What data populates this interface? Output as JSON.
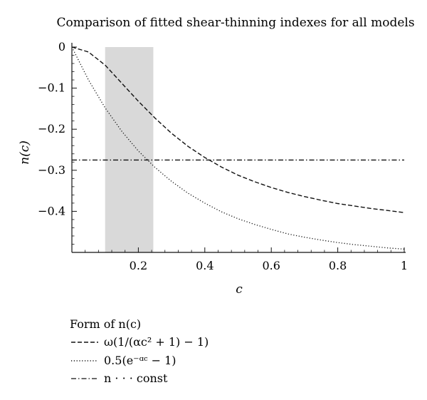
{
  "chart_data": {
    "type": "line",
    "title": "Comparison of fitted shear-thinning indexes for all models",
    "xlabel": "c",
    "ylabel": "n(c)",
    "xlim": [
      0,
      1
    ],
    "ylim": [
      -0.5,
      0
    ],
    "x_ticks": [
      0.2,
      0.4,
      0.6,
      0.8,
      1.0
    ],
    "x_tick_labels": [
      "0.2",
      "0.4",
      "0.6",
      "0.8",
      "1"
    ],
    "y_ticks": [
      0,
      -0.1,
      -0.2,
      -0.3,
      -0.4
    ],
    "y_tick_labels": [
      "0",
      "−0.1",
      "−0.2",
      "−0.3",
      "−0.4"
    ],
    "shaded_region": {
      "x_start": 0.1,
      "x_end": 0.245,
      "color": "#d9d9d9"
    },
    "series": [
      {
        "name": "ω(1/(αc² + 1) − 1)",
        "style": "dashed",
        "x": [
          0,
          0.05,
          0.1,
          0.15,
          0.2,
          0.25,
          0.3,
          0.35,
          0.4,
          0.45,
          0.5,
          0.55,
          0.6,
          0.65,
          0.7,
          0.75,
          0.8,
          0.85,
          0.9,
          0.95,
          1.0
        ],
        "y": [
          0,
          -0.012,
          -0.044,
          -0.088,
          -0.132,
          -0.173,
          -0.21,
          -0.242,
          -0.269,
          -0.292,
          -0.312,
          -0.328,
          -0.342,
          -0.354,
          -0.364,
          -0.373,
          -0.381,
          -0.387,
          -0.393,
          -0.398,
          -0.403
        ]
      },
      {
        "name": "0.5(e⁻ᵅᶜ − 1)",
        "style": "dotted",
        "x": [
          0,
          0.05,
          0.1,
          0.15,
          0.2,
          0.25,
          0.3,
          0.35,
          0.4,
          0.45,
          0.5,
          0.55,
          0.6,
          0.65,
          0.7,
          0.75,
          0.8,
          0.85,
          0.9,
          0.95,
          1.0
        ],
        "y": [
          0,
          -0.08,
          -0.148,
          -0.205,
          -0.253,
          -0.293,
          -0.327,
          -0.356,
          -0.38,
          -0.401,
          -0.418,
          -0.432,
          -0.444,
          -0.455,
          -0.463,
          -0.47,
          -0.476,
          -0.481,
          -0.485,
          -0.489,
          -0.492
        ]
      },
      {
        "name": "n · · · const",
        "style": "dashdot",
        "x": [
          0,
          1.0
        ],
        "y": [
          -0.275,
          -0.275
        ]
      }
    ],
    "legend": {
      "title": "Form of n(c)",
      "placement": "bottom-left"
    }
  }
}
